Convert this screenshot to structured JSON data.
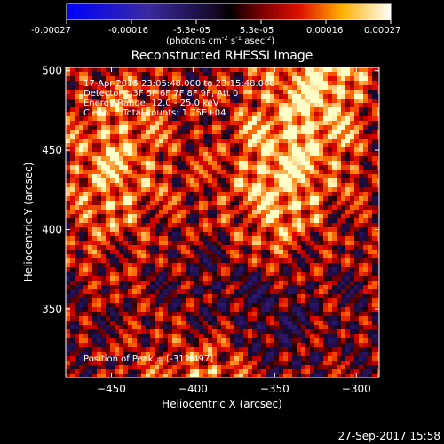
{
  "colorbar": {
    "ticks": [
      "-0.00027",
      "-0.00016",
      "-5.3e-05",
      "5.3e-05",
      "0.00016",
      "0.00027"
    ],
    "range": [
      -0.00027,
      0.00027
    ],
    "units_label": "(photons cm",
    "units_exp1": "-2",
    "units_mid": " s",
    "units_exp2": "-1",
    "units_end": " asec",
    "units_exp3": "-2",
    "units_close": ")"
  },
  "chart_data": {
    "type": "heatmap",
    "title": "Reconstructed RHESSI Image",
    "xlabel": "Heliocentric X (arcsec)",
    "ylabel": "Heliocentric Y (arcsec)",
    "xlim": [
      -478,
      -286
    ],
    "ylim": [
      307,
      502
    ],
    "x_ticks": [
      -450,
      -400,
      -350,
      -300
    ],
    "y_ticks": [
      350,
      400,
      450,
      500
    ],
    "x_tick_labels": [
      "−450",
      "−400",
      "−350",
      "−300"
    ],
    "y_tick_labels": [
      "350",
      "400",
      "450",
      "500"
    ],
    "colormap": "RHESSI red-temperature with blue negative",
    "annotations": {
      "time": "17-Apr-2015 23:05:48.000 to 23:15:48.000",
      "detectors": "Detectors: 3F 5F 6F 7F 8F 9F, Att 0",
      "energy": "Energy Range: 12.0 - 25.0 keV",
      "clean": "Clean     Total counts: 1.75E+04",
      "peak": "Position of Peak = [-312,497]"
    },
    "peak_position": [
      -312,
      497
    ],
    "total_counts": 17500,
    "energy_range_kev": [
      12.0,
      25.0
    ]
  },
  "footer": {
    "timestamp": "27-Sep-2017 15:58"
  }
}
